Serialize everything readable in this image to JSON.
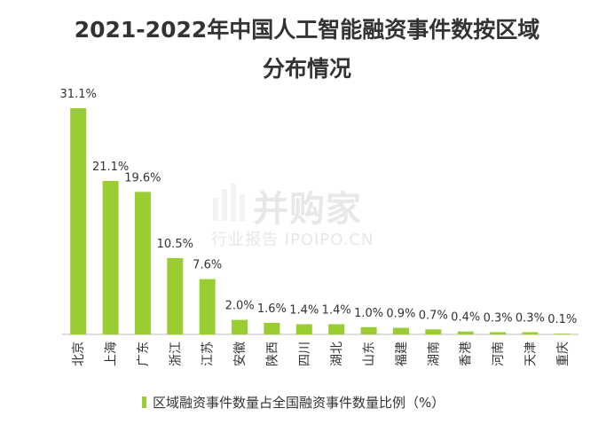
{
  "title_line1": "2021-2022年中国人工智能融资事件数按区域",
  "title_line2": "分布情况",
  "watermark": {
    "line1": "并购家",
    "line2": "行业报告 IPOIPO.CN"
  },
  "colors": {
    "bar": "#9acd32",
    "axis": "#bbbbbb",
    "text": "#333333"
  },
  "chart_data": {
    "type": "bar",
    "categories": [
      "北京",
      "上海",
      "广东",
      "浙江",
      "江苏",
      "安徽",
      "陕西",
      "四川",
      "湖北",
      "山东",
      "福建",
      "湖南",
      "香港",
      "河南",
      "天津",
      "重庆"
    ],
    "series": [
      {
        "name": "区域融资事件数量占全国融资事件数量比例（%）",
        "values": [
          31.1,
          21.1,
          19.6,
          10.5,
          7.6,
          2.0,
          1.6,
          1.4,
          1.4,
          1.0,
          0.9,
          0.7,
          0.4,
          0.3,
          0.3,
          0.1
        ]
      }
    ],
    "value_labels": [
      "31.1%",
      "21.1%",
      "19.6%",
      "10.5%",
      "7.6%",
      "2.0%",
      "1.6%",
      "1.4%",
      "1.4%",
      "1.0%",
      "0.9%",
      "0.7%",
      "0.4%",
      "0.3%",
      "0.3%",
      "0.1%"
    ],
    "ylim": [
      0,
      31.1
    ],
    "grid": false,
    "legend_position": "bottom"
  }
}
